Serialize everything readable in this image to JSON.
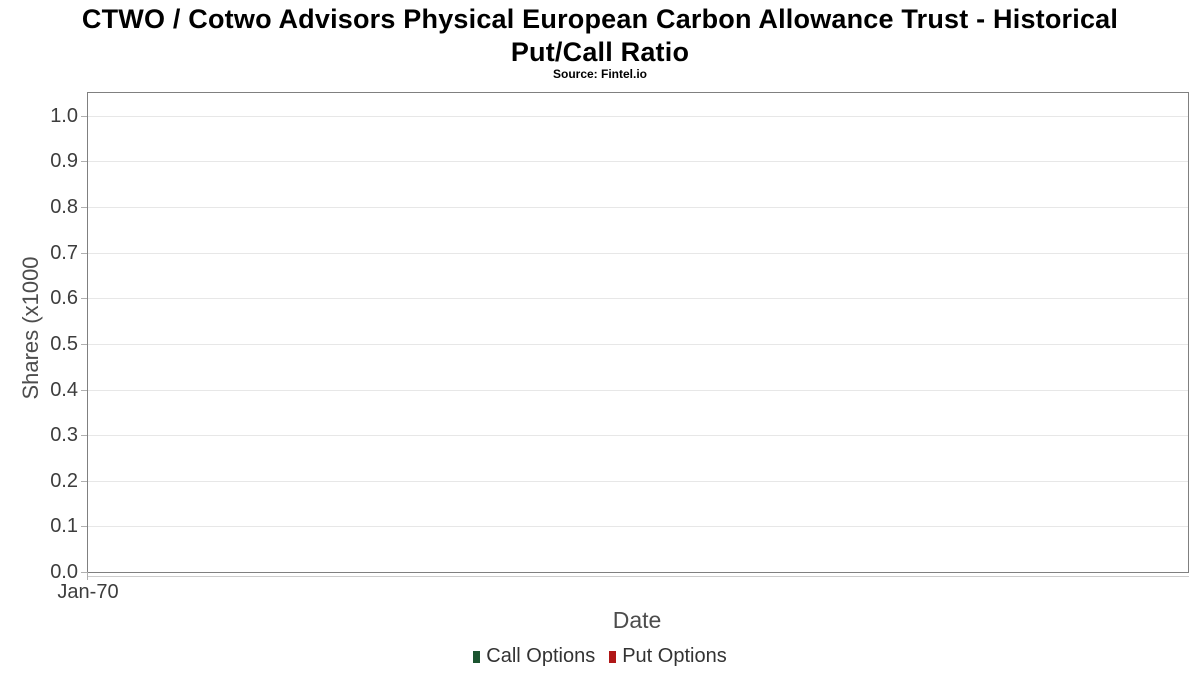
{
  "title": {
    "line1": "CTWO / Cotwo Advisors Physical European Carbon Allowance Trust - Historical",
    "line2": "Put/Call Ratio"
  },
  "subtitle": "Source: Fintel.io",
  "chart_data": {
    "type": "line",
    "title": "CTWO / Cotwo Advisors Physical European Carbon Allowance Trust - Historical Put/Call Ratio",
    "subtitle": "Source: Fintel.io",
    "xlabel": "Date",
    "ylabel": "Shares (x1000",
    "x_ticks": [
      "Jan-70"
    ],
    "y_ticks": [
      "0.0",
      "0.1",
      "0.2",
      "0.3",
      "0.4",
      "0.5",
      "0.6",
      "0.7",
      "0.8",
      "0.9",
      "1.0"
    ],
    "ylim": [
      0,
      1.05
    ],
    "grid": true,
    "legend_position": "bottom",
    "series": [
      {
        "name": "Call Options",
        "color": "#1b5430",
        "x": [],
        "values": []
      },
      {
        "name": "Put Options",
        "color": "#b01717",
        "x": [],
        "values": []
      }
    ]
  },
  "colors": {
    "plot_border": "#808080",
    "gridline": "#e7e7e7",
    "axis_line": "#cccccc",
    "tick_mark": "#b0b0b0",
    "tick_label": "#3d3d3d",
    "axis_label": "#4d4d4d",
    "legend_text": "#333333",
    "call_options_green": "#1b5430",
    "put_options_red": "#b01717"
  }
}
